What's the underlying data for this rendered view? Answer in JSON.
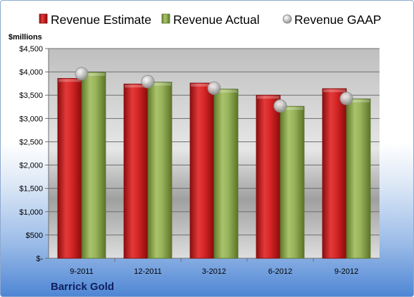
{
  "company": "Barrick Gold",
  "chart_data": {
    "type": "bar",
    "title": "",
    "ylabel": "$millions",
    "xlabel": "",
    "categories": [
      "9-2011",
      "12-2011",
      "3-2012",
      "6-2012",
      "9-2012"
    ],
    "ylim": [
      0,
      4500
    ],
    "yticks": [
      0,
      500,
      1000,
      1500,
      2000,
      2500,
      3000,
      3500,
      4000,
      4500
    ],
    "ytick_labels": [
      "$-",
      "$500",
      "$1,000",
      "$1,500",
      "$2,000",
      "$2,500",
      "$3,000",
      "$3,500",
      "$4,000",
      "$4,500"
    ],
    "grid": true,
    "legend_position": "top",
    "series": [
      {
        "name": "Revenue Estimate",
        "kind": "bar",
        "color": "#cc1f1f",
        "values": [
          3860,
          3740,
          3760,
          3500,
          3640
        ]
      },
      {
        "name": "Revenue Actual",
        "kind": "bar",
        "color": "#92ab55",
        "values": [
          3990,
          3780,
          3630,
          3260,
          3420
        ]
      },
      {
        "name": "Revenue GAAP",
        "kind": "marker",
        "color": "#b4b4b4",
        "values": [
          3960,
          3790,
          3650,
          3270,
          3430
        ]
      }
    ]
  }
}
